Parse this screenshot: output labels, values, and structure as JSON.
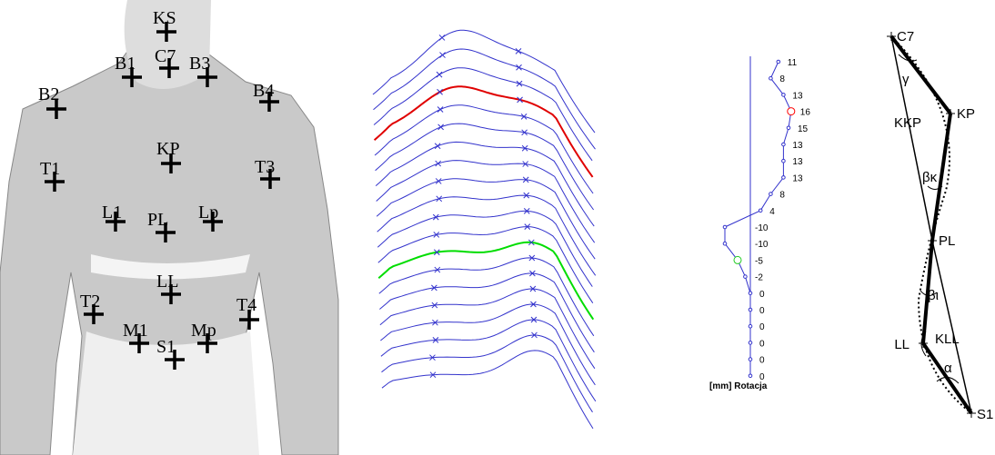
{
  "landmarks": [
    "KS",
    "C7",
    "B1",
    "B3",
    "B2",
    "B4",
    "KP",
    "T1",
    "T3",
    "L1",
    "PL",
    "Lp",
    "LL",
    "T2",
    "T4",
    "M1",
    "Mp",
    "S1"
  ],
  "rotation": {
    "values": [
      11,
      8,
      13,
      16,
      15,
      13,
      13,
      13,
      8,
      4,
      -10,
      -10,
      -5,
      -2,
      0,
      0,
      0,
      0,
      0,
      0
    ],
    "label": "[mm] Rotacja"
  },
  "angles": {
    "points": [
      "C7",
      "KP",
      "PL",
      "LL",
      "S1"
    ],
    "segments": [
      "KKP",
      "KLL"
    ],
    "angles": [
      "γ",
      "βκ",
      "βι",
      "α"
    ]
  }
}
